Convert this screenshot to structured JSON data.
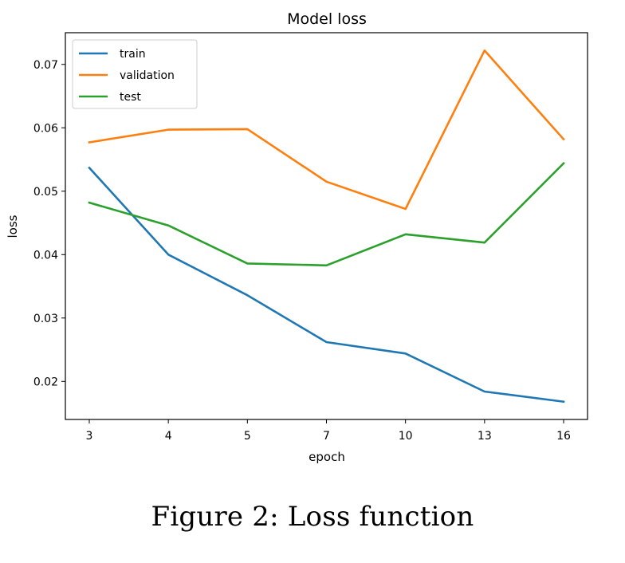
{
  "chart_data": {
    "type": "line",
    "title": "Model loss",
    "xlabel": "epoch",
    "ylabel": "loss",
    "x": [
      "3",
      "4",
      "5",
      "7",
      "10",
      "13",
      "16"
    ],
    "ylim": [
      0.014,
      0.075
    ],
    "yticks": [
      "0.02",
      "0.03",
      "0.04",
      "0.05",
      "0.06",
      "0.07"
    ],
    "grid": false,
    "legend_position": "upper-left",
    "series": [
      {
        "name": "train",
        "color": "#1f77b4",
        "values": [
          0.0537,
          0.04,
          0.0336,
          0.0262,
          0.0244,
          0.0184,
          0.0168
        ]
      },
      {
        "name": "validation",
        "color": "#ff7f0e",
        "values": [
          0.0577,
          0.0597,
          0.0598,
          0.0515,
          0.0472,
          0.0722,
          0.0582
        ]
      },
      {
        "name": "test",
        "color": "#2ca02c",
        "values": [
          0.0482,
          0.0446,
          0.0386,
          0.0383,
          0.0432,
          0.0419,
          0.0544
        ]
      }
    ]
  },
  "figure": {
    "caption": "Figure 2: Loss function"
  }
}
